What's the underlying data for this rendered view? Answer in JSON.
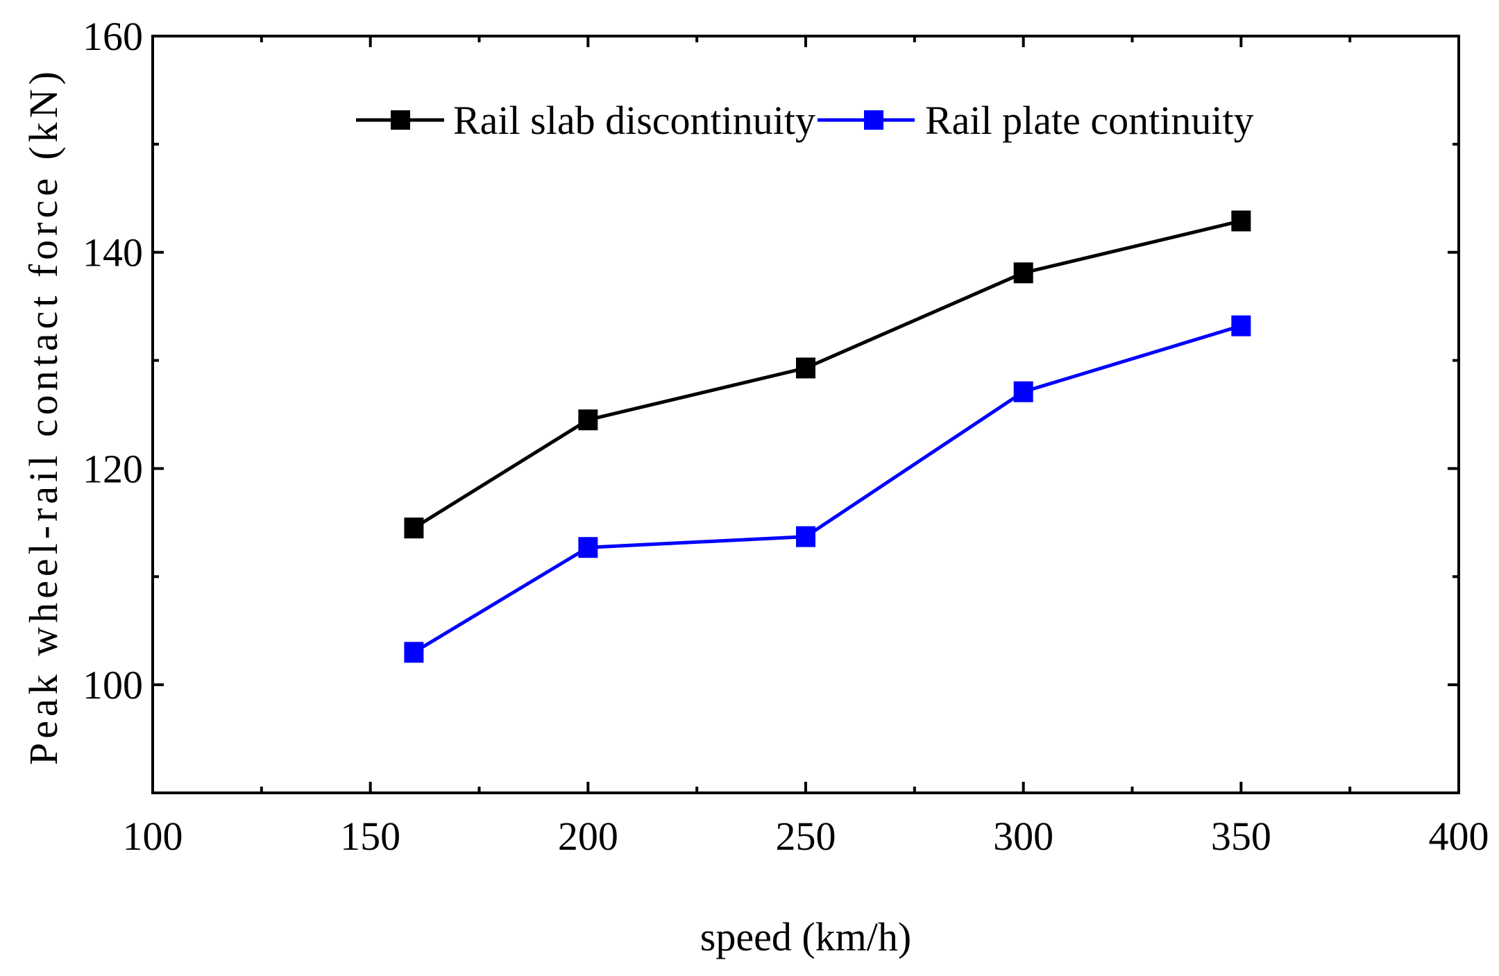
{
  "chart_data": {
    "type": "line",
    "title": "",
    "xlabel": "speed (km/h)",
    "ylabel": "Peak wheel-rail contact force (kN)",
    "xlim": [
      100,
      400
    ],
    "ylim": [
      90,
      160
    ],
    "x_ticks": [
      "100",
      "150",
      "200",
      "250",
      "300",
      "350",
      "400"
    ],
    "y_ticks": [
      "100",
      "120",
      "140",
      "160"
    ],
    "x_tick_values": [
      100,
      150,
      200,
      250,
      300,
      350,
      400
    ],
    "y_tick_values": [
      100,
      120,
      140,
      160
    ],
    "x_minor_ticks": [
      125,
      175,
      225,
      275,
      325,
      375
    ],
    "y_minor_ticks": [
      110,
      130,
      150
    ],
    "grid": false,
    "legend_position": "top-center",
    "x": [
      160,
      200,
      250,
      300,
      350
    ],
    "series": [
      {
        "name": "Rail slab discontinuity",
        "color": "#000000",
        "marker": "square",
        "values": [
          114.5,
          124.5,
          129.3,
          138.1,
          142.9
        ]
      },
      {
        "name": "Rail plate continuity",
        "color": "#0000ff",
        "marker": "square",
        "values": [
          103.0,
          112.7,
          113.7,
          127.1,
          133.2
        ]
      }
    ]
  }
}
